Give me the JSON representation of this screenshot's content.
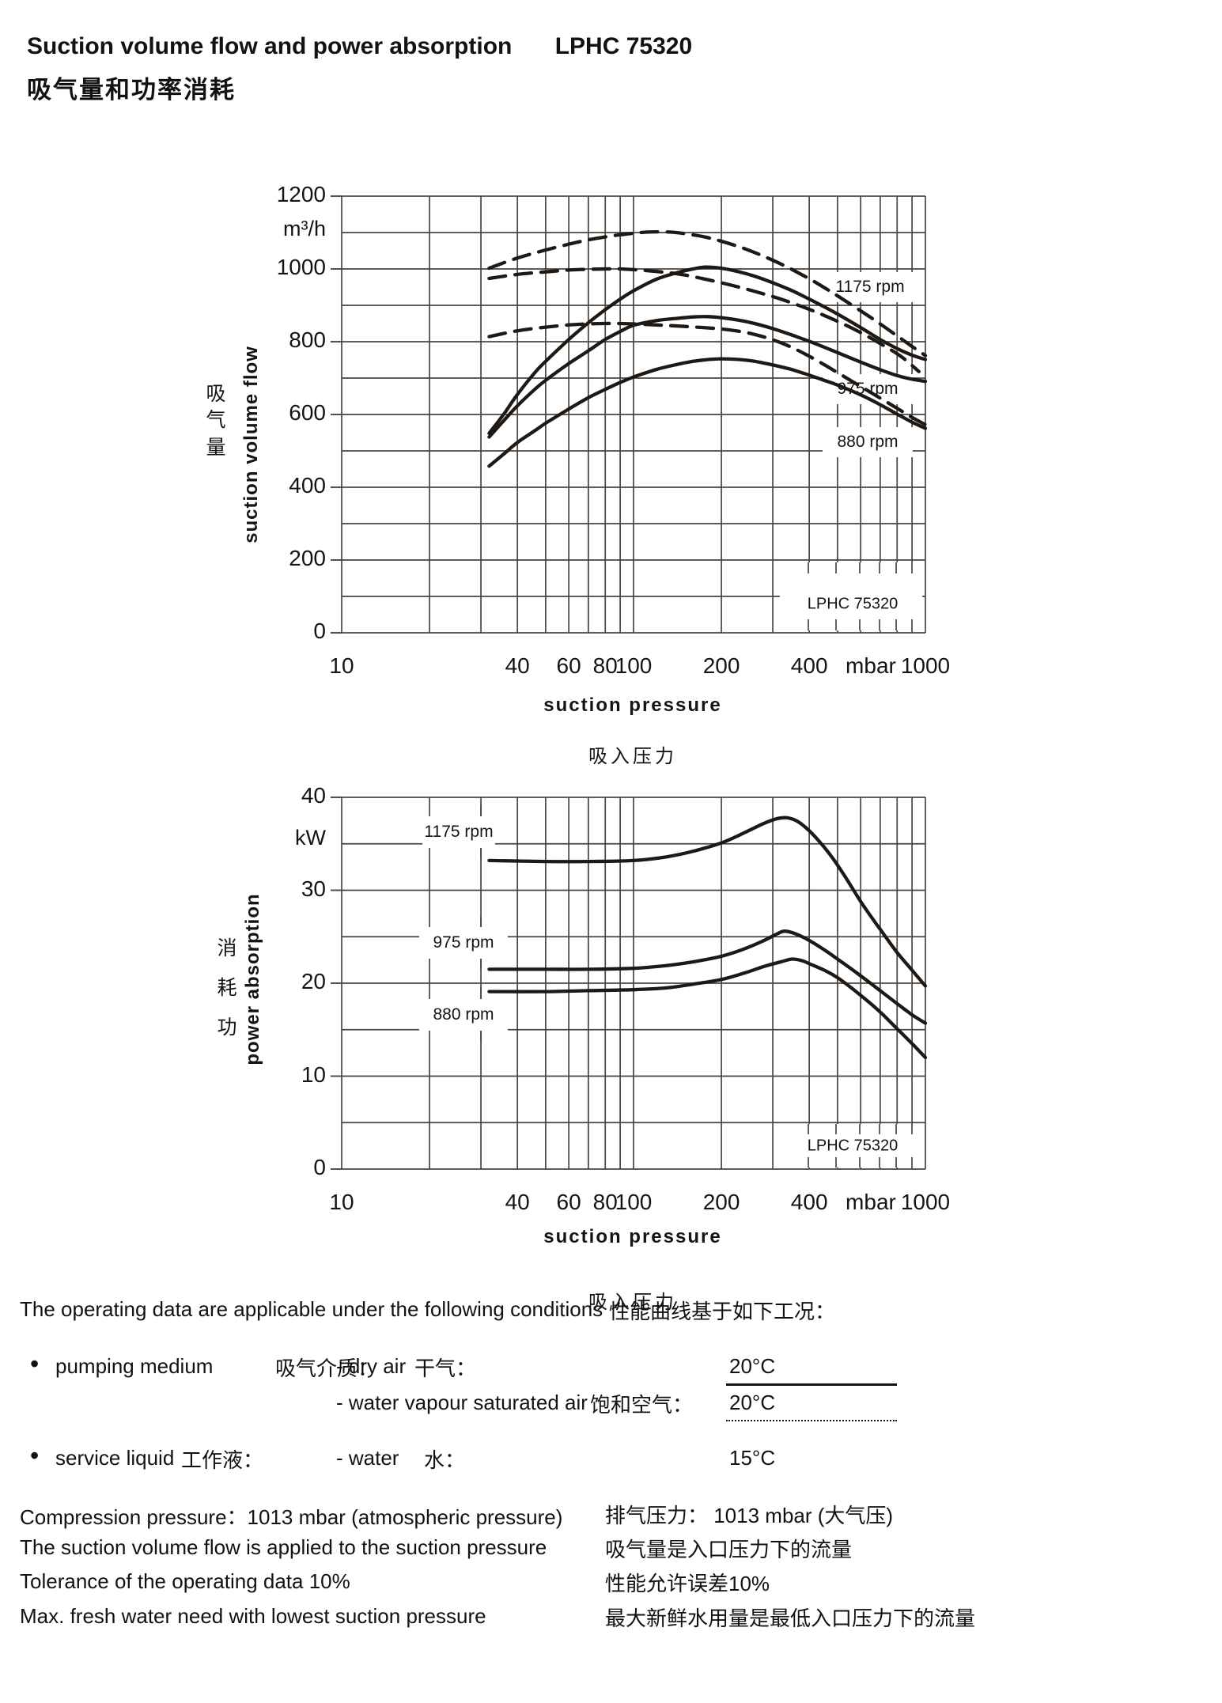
{
  "header": {
    "title_en": "Suction volume flow and power absorption",
    "title_model": "LPHC 75320",
    "title_zh": "吸气量和功率消耗"
  },
  "chart_data": [
    {
      "type": "line",
      "title_en": "suction volume flow",
      "unit": "m³/h",
      "x_unit": "mbar",
      "ylabel_en": "suction volume flow",
      "ylabel_zh": "吸气量",
      "xlabel_en": "suction pressure",
      "xlabel_zh": "吸入压力",
      "xscale": "log",
      "xlim": [
        10,
        1000
      ],
      "ylim": [
        0,
        1200
      ],
      "grid": "log minor x, 100-step y",
      "yticks": [
        "1200",
        "1000",
        "800",
        "600",
        "400",
        "200",
        "0"
      ],
      "xticks": [
        {
          "label": "10",
          "p": 10
        },
        {
          "label": "40",
          "p": 40
        },
        {
          "label": "60",
          "p": 60
        },
        {
          "label": "80",
          "p": 80
        },
        {
          "label": "100",
          "p": 100
        },
        {
          "label": "200",
          "p": 200
        },
        {
          "label": "400",
          "p": 400
        },
        {
          "label": "mbar",
          "p": 650
        },
        {
          "label": "1000",
          "p": 1000
        }
      ],
      "rpm_labels": [
        "1175 rpm",
        "975 rpm",
        "880 rpm"
      ],
      "model_label": "LPHC 75320",
      "series": [
        {
          "name": "1175 rpm - dry air",
          "rpm": 1175,
          "medium": "dry air",
          "style": "solid",
          "points": [
            [
              32,
              548
            ],
            [
              36,
              602
            ],
            [
              40,
              655
            ],
            [
              46,
              716
            ],
            [
              50,
              746
            ],
            [
              60,
              806
            ],
            [
              70,
              852
            ],
            [
              80,
              888
            ],
            [
              90,
              917
            ],
            [
              100,
              940
            ],
            [
              120,
              972
            ],
            [
              140,
              989
            ],
            [
              160,
              1000
            ],
            [
              175,
              1005
            ],
            [
              200,
              1002
            ],
            [
              230,
              992
            ],
            [
              260,
              980
            ],
            [
              300,
              962
            ],
            [
              350,
              940
            ],
            [
              400,
              917
            ],
            [
              450,
              896
            ],
            [
              500,
              876
            ],
            [
              600,
              839
            ],
            [
              700,
              806
            ],
            [
              800,
              781
            ],
            [
              900,
              763
            ],
            [
              1000,
              751
            ]
          ]
        },
        {
          "name": "975 rpm - dry air",
          "rpm": 975,
          "medium": "dry air",
          "style": "solid",
          "points": [
            [
              32,
              538
            ],
            [
              36,
              584
            ],
            [
              40,
              624
            ],
            [
              46,
              670
            ],
            [
              50,
              694
            ],
            [
              60,
              740
            ],
            [
              70,
              775
            ],
            [
              80,
              806
            ],
            [
              90,
              828
            ],
            [
              100,
              845
            ],
            [
              120,
              858
            ],
            [
              140,
              864
            ],
            [
              160,
              868
            ],
            [
              180,
              869
            ],
            [
              200,
              866
            ],
            [
              230,
              859
            ],
            [
              260,
              850
            ],
            [
              300,
              836
            ],
            [
              350,
              818
            ],
            [
              400,
              801
            ],
            [
              450,
              785
            ],
            [
              500,
              770
            ],
            [
              600,
              744
            ],
            [
              700,
              723
            ],
            [
              800,
              707
            ],
            [
              900,
              697
            ],
            [
              1000,
              691
            ]
          ]
        },
        {
          "name": "880 rpm - dry air",
          "rpm": 880,
          "medium": "dry air",
          "style": "solid",
          "points": [
            [
              32,
              458
            ],
            [
              36,
              492
            ],
            [
              40,
              523
            ],
            [
              46,
              556
            ],
            [
              50,
              576
            ],
            [
              60,
              615
            ],
            [
              70,
              646
            ],
            [
              80,
              669
            ],
            [
              90,
              688
            ],
            [
              100,
              703
            ],
            [
              120,
              724
            ],
            [
              140,
              737
            ],
            [
              160,
              746
            ],
            [
              180,
              751
            ],
            [
              200,
              753
            ],
            [
              230,
              751
            ],
            [
              260,
              746
            ],
            [
              300,
              736
            ],
            [
              350,
              723
            ],
            [
              400,
              708
            ],
            [
              450,
              694
            ],
            [
              500,
              681
            ],
            [
              600,
              654
            ],
            [
              700,
              627
            ],
            [
              800,
              601
            ],
            [
              900,
              579
            ],
            [
              1000,
              562
            ]
          ]
        },
        {
          "name": "1175 rpm - water vapour saturated air",
          "rpm": 1175,
          "medium": "water vapour saturated air",
          "style": "dashed",
          "points": [
            [
              32,
              1002
            ],
            [
              40,
              1030
            ],
            [
              50,
              1052
            ],
            [
              60,
              1068
            ],
            [
              70,
              1080
            ],
            [
              80,
              1088
            ],
            [
              90,
              1094
            ],
            [
              100,
              1098
            ],
            [
              110,
              1101
            ],
            [
              120,
              1102
            ],
            [
              135,
              1101
            ],
            [
              150,
              1097
            ],
            [
              175,
              1088
            ],
            [
              200,
              1076
            ],
            [
              230,
              1061
            ],
            [
              260,
              1045
            ],
            [
              300,
              1024
            ],
            [
              350,
              998
            ],
            [
              400,
              973
            ],
            [
              450,
              949
            ],
            [
              500,
              926
            ],
            [
              600,
              885
            ],
            [
              700,
              849
            ],
            [
              800,
              816
            ],
            [
              900,
              787
            ],
            [
              1000,
              762
            ]
          ]
        },
        {
          "name": "975 rpm - water vapour saturated air",
          "rpm": 975,
          "medium": "water vapour saturated air",
          "style": "dashed",
          "points": [
            [
              32,
              974
            ],
            [
              40,
              985
            ],
            [
              50,
              992
            ],
            [
              60,
              997
            ],
            [
              70,
              999
            ],
            [
              80,
              1000
            ],
            [
              90,
              1000
            ],
            [
              100,
              998
            ],
            [
              120,
              993
            ],
            [
              140,
              987
            ],
            [
              160,
              979
            ],
            [
              200,
              962
            ],
            [
              240,
              946
            ],
            [
              280,
              931
            ],
            [
              320,
              917
            ],
            [
              400,
              889
            ],
            [
              500,
              856
            ],
            [
              600,
              825
            ],
            [
              700,
              795
            ],
            [
              800,
              767
            ],
            [
              870,
              745
            ],
            [
              950,
              718
            ]
          ]
        },
        {
          "name": "880 rpm - water vapour saturated air",
          "rpm": 880,
          "medium": "water vapour saturated air",
          "style": "dashed",
          "points": [
            [
              32,
              814
            ],
            [
              40,
              830
            ],
            [
              50,
              840
            ],
            [
              60,
              846
            ],
            [
              70,
              849
            ],
            [
              80,
              850
            ],
            [
              90,
              850
            ],
            [
              100,
              849
            ],
            [
              120,
              846
            ],
            [
              150,
              842
            ],
            [
              200,
              835
            ],
            [
              240,
              826
            ],
            [
              280,
              813
            ],
            [
              320,
              797
            ],
            [
              360,
              779
            ],
            [
              400,
              760
            ],
            [
              450,
              737
            ],
            [
              500,
              715
            ],
            [
              600,
              677
            ],
            [
              700,
              645
            ],
            [
              800,
              617
            ],
            [
              900,
              592
            ],
            [
              1000,
              572
            ]
          ]
        }
      ]
    },
    {
      "type": "line",
      "title_en": "power absorption",
      "unit": "kW",
      "x_unit": "mbar",
      "ylabel_en": "power absorption",
      "ylabel_zh": "消耗功",
      "xlabel_en": "suction pressure",
      "xlabel_zh": "吸入压力",
      "xscale": "log",
      "xlim": [
        10,
        1000
      ],
      "ylim": [
        0,
        40
      ],
      "grid": "log minor x, 5-step y",
      "yticks": [
        "40",
        "30",
        "20",
        "10",
        "0"
      ],
      "xticks": [
        {
          "label": "10",
          "p": 10
        },
        {
          "label": "40",
          "p": 40
        },
        {
          "label": "60",
          "p": 60
        },
        {
          "label": "80",
          "p": 80
        },
        {
          "label": "100",
          "p": 100
        },
        {
          "label": "200",
          "p": 200
        },
        {
          "label": "400",
          "p": 400
        },
        {
          "label": "mbar",
          "p": 650
        },
        {
          "label": "1000",
          "p": 1000
        }
      ],
      "rpm_labels": [
        "1175 rpm",
        "975 rpm",
        "880 rpm"
      ],
      "model_label": "LPHC 75320",
      "series": [
        {
          "name": "1175 rpm",
          "rpm": 1175,
          "style": "solid",
          "points": [
            [
              32,
              33.2
            ],
            [
              50,
              33.1
            ],
            [
              70,
              33.1
            ],
            [
              100,
              33.2
            ],
            [
              130,
              33.6
            ],
            [
              160,
              34.2
            ],
            [
              200,
              35.1
            ],
            [
              240,
              36.2
            ],
            [
              280,
              37.2
            ],
            [
              310,
              37.7
            ],
            [
              335,
              37.8
            ],
            [
              365,
              37.4
            ],
            [
              400,
              36.4
            ],
            [
              440,
              35.0
            ],
            [
              480,
              33.5
            ],
            [
              520,
              31.9
            ],
            [
              560,
              30.3
            ],
            [
              600,
              28.8
            ],
            [
              650,
              27.2
            ],
            [
              700,
              25.8
            ],
            [
              800,
              23.3
            ],
            [
              900,
              21.4
            ],
            [
              1000,
              19.7
            ]
          ]
        },
        {
          "name": "975 rpm",
          "rpm": 975,
          "style": "solid",
          "points": [
            [
              32,
              21.5
            ],
            [
              50,
              21.5
            ],
            [
              70,
              21.5
            ],
            [
              100,
              21.6
            ],
            [
              130,
              21.9
            ],
            [
              160,
              22.3
            ],
            [
              200,
              22.9
            ],
            [
              240,
              23.7
            ],
            [
              280,
              24.6
            ],
            [
              310,
              25.3
            ],
            [
              330,
              25.6
            ],
            [
              360,
              25.3
            ],
            [
              400,
              24.6
            ],
            [
              450,
              23.6
            ],
            [
              500,
              22.6
            ],
            [
              600,
              20.8
            ],
            [
              700,
              19.2
            ],
            [
              800,
              17.8
            ],
            [
              900,
              16.6
            ],
            [
              1000,
              15.7
            ]
          ]
        },
        {
          "name": "880 rpm",
          "rpm": 880,
          "style": "solid",
          "points": [
            [
              32,
              19.1
            ],
            [
              50,
              19.1
            ],
            [
              70,
              19.2
            ],
            [
              100,
              19.3
            ],
            [
              130,
              19.5
            ],
            [
              160,
              19.9
            ],
            [
              200,
              20.4
            ],
            [
              240,
              21.1
            ],
            [
              280,
              21.8
            ],
            [
              320,
              22.3
            ],
            [
              350,
              22.6
            ],
            [
              380,
              22.4
            ],
            [
              400,
              22.1
            ],
            [
              450,
              21.4
            ],
            [
              500,
              20.6
            ],
            [
              600,
              18.7
            ],
            [
              700,
              16.9
            ],
            [
              800,
              15.1
            ],
            [
              900,
              13.5
            ],
            [
              1000,
              12.0
            ]
          ]
        }
      ]
    }
  ],
  "conditions": {
    "intro_en": "The operating data are applicable under the following conditions",
    "intro_zh": "性能曲线基于如下工况：",
    "bullet": "•",
    "pumping": {
      "label_en": "pumping medium",
      "label_zh": "吸气介质：",
      "dry": {
        "en": "- dry air",
        "zh": "干气：",
        "value": "20°C",
        "line_style": "solid"
      },
      "saturated": {
        "en": "- water vapour saturated air",
        "zh": "饱和空气：",
        "value": "20°C",
        "line_style": "dashed"
      }
    },
    "service": {
      "label_en": "service liquid",
      "label_zh": "工作液：",
      "water_en": "- water",
      "water_zh": "水：",
      "value": "15°C"
    }
  },
  "notes": [
    {
      "en": "Compression pressure：1013 mbar (atmospheric pressure)",
      "zh": "排气压力： 1013 mbar (大气压)"
    },
    {
      "en": "The suction volume flow is applied to the suction pressure",
      "zh": "吸气量是入口压力下的流量"
    },
    {
      "en": "Tolerance of the operating data 10%",
      "zh": "性能允许误差10%"
    },
    {
      "en": "Max. fresh water need with lowest suction pressure",
      "zh": "最大新鲜水用量是最低入口压力下的流量"
    }
  ]
}
